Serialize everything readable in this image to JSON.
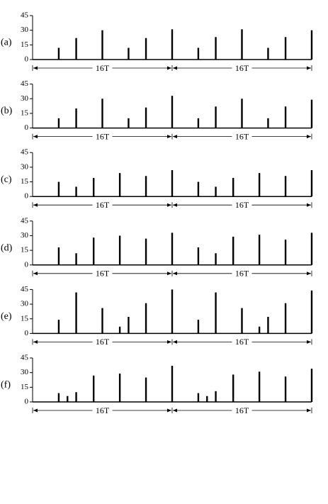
{
  "chart_data": [
    {
      "type": "spike",
      "label": "(a)",
      "x": [
        3,
        5,
        8,
        11,
        13,
        16,
        19,
        21,
        24,
        27,
        29,
        32
      ],
      "values": [
        12,
        22,
        30,
        12,
        22,
        31,
        12,
        23,
        31,
        12,
        23,
        30
      ],
      "color": "#000000",
      "xlim": [
        0,
        32
      ],
      "ylim": [
        0,
        45
      ],
      "yticks": [
        0,
        15,
        30,
        45
      ],
      "annotations": [
        "16T",
        "16T"
      ]
    },
    {
      "type": "spike",
      "label": "(b)",
      "x": [
        3,
        5,
        8,
        11,
        13,
        16,
        19,
        21,
        24,
        27,
        29,
        32
      ],
      "values": [
        10,
        20,
        30,
        10,
        21,
        33,
        10,
        22,
        30,
        10,
        22,
        29
      ],
      "color": "#000000",
      "xlim": [
        0,
        32
      ],
      "ylim": [
        0,
        45
      ],
      "yticks": [
        0,
        15,
        30,
        45
      ],
      "annotations": [
        "16T",
        "16T"
      ]
    },
    {
      "type": "spike",
      "label": "(c)",
      "x": [
        3,
        5,
        7,
        10,
        13,
        16,
        19,
        21,
        23,
        26,
        29,
        32
      ],
      "values": [
        15,
        10,
        19,
        24,
        21,
        27,
        15,
        10,
        19,
        24,
        21,
        27
      ],
      "color": "#000000",
      "xlim": [
        0,
        32
      ],
      "ylim": [
        0,
        45
      ],
      "yticks": [
        0,
        15,
        30,
        45
      ],
      "annotations": [
        "16T",
        "16T"
      ]
    },
    {
      "type": "spike",
      "label": "(d)",
      "x": [
        3,
        5,
        7,
        10,
        13,
        16,
        19,
        21,
        23,
        26,
        29,
        32
      ],
      "values": [
        18,
        12,
        28,
        30,
        27,
        33,
        18,
        12,
        29,
        31,
        26,
        33
      ],
      "color": "#000000",
      "xlim": [
        0,
        32
      ],
      "ylim": [
        0,
        45
      ],
      "yticks": [
        0,
        15,
        30,
        45
      ],
      "annotations": [
        "16T",
        "16T"
      ]
    },
    {
      "type": "spike",
      "label": "(e)",
      "x": [
        3,
        5,
        8,
        10,
        11,
        13,
        16,
        19,
        21,
        24,
        26,
        27,
        29,
        32
      ],
      "values": [
        14,
        42,
        26,
        7,
        17,
        31,
        45,
        14,
        42,
        26,
        7,
        17,
        31,
        44
      ],
      "color": "#000000",
      "xlim": [
        0,
        32
      ],
      "ylim": [
        0,
        45
      ],
      "yticks": [
        0,
        15,
        30,
        45
      ],
      "annotations": [
        "16T",
        "16T"
      ]
    },
    {
      "type": "spike",
      "label": "(f)",
      "x": [
        3,
        4,
        5,
        7,
        10,
        13,
        16,
        19,
        20,
        21,
        23,
        26,
        29,
        32
      ],
      "values": [
        9,
        6,
        10,
        27,
        29,
        25,
        37,
        9,
        6,
        11,
        28,
        31,
        26,
        34
      ],
      "color": "#000000",
      "xlim": [
        0,
        32
      ],
      "ylim": [
        0,
        45
      ],
      "yticks": [
        0,
        15,
        30,
        45
      ],
      "annotations": [
        "16T",
        "16T"
      ]
    }
  ]
}
